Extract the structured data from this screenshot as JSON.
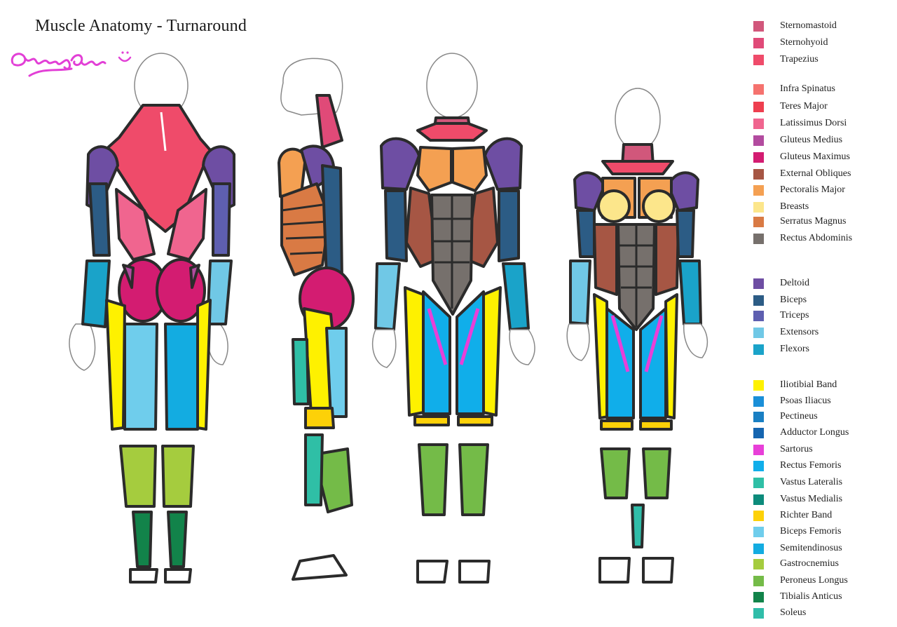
{
  "title": "Muscle Anatomy - Turnaround",
  "signature": "NooPaper",
  "legend": [
    {
      "label": "Sternomastoid",
      "color": "#d1577b"
    },
    {
      "label": "Sternohyoid",
      "color": "#e04a78"
    },
    {
      "label": "Trapezius",
      "color": "#ef4b6a"
    },
    {
      "label": "Infra Spinatus",
      "color": "#f5726e"
    },
    {
      "label": "Teres Major",
      "color": "#ee3f4f"
    },
    {
      "label": "Latissimus Dorsi",
      "color": "#f0658f"
    },
    {
      "label": "Gluteus Medius",
      "color": "#b24b9f"
    },
    {
      "label": "Gluteus Maximus",
      "color": "#d31c71"
    },
    {
      "label": "External Obliques",
      "color": "#a65644"
    },
    {
      "label": "Pectoralis Major",
      "color": "#f4a052"
    },
    {
      "label": "Breasts",
      "color": "#fce68b"
    },
    {
      "label": "Serratus Magnus",
      "color": "#d97a44"
    },
    {
      "label": "Rectus Abdominis",
      "color": "#76706c"
    },
    {
      "label": "Deltoid",
      "color": "#6e4ea3"
    },
    {
      "label": "Biceps",
      "color": "#2c5c85"
    },
    {
      "label": "Triceps",
      "color": "#5e5fb0"
    },
    {
      "label": "Extensors",
      "color": "#70c8e6"
    },
    {
      "label": "Flexors",
      "color": "#1aa3c9"
    },
    {
      "label": "Iliotibial Band",
      "color": "#fef100"
    },
    {
      "label": "Psoas Iliacus",
      "color": "#1a8fd8"
    },
    {
      "label": "Pectineus",
      "color": "#197fc3"
    },
    {
      "label": "Adductor Longus",
      "color": "#1565b0"
    },
    {
      "label": "Sartorus",
      "color": "#e83fd8"
    },
    {
      "label": "Rectus Femoris",
      "color": "#10aeea"
    },
    {
      "label": "Vastus Lateralis",
      "color": "#2fbfa6"
    },
    {
      "label": "Vastus Medialis",
      "color": "#0c8b7b"
    },
    {
      "label": "Richter Band",
      "color": "#fdd108"
    },
    {
      "label": "Biceps Femoris",
      "color": "#6fcdec"
    },
    {
      "label": "Semitendinosus",
      "color": "#13ace1"
    },
    {
      "label": "Gastrocnemius",
      "color": "#a5cc3e"
    },
    {
      "label": "Peroneus Longus",
      "color": "#74bb48"
    },
    {
      "label": "Tibialis Anticus",
      "color": "#12834a"
    },
    {
      "label": "Soleus",
      "color": "#30bda9"
    }
  ]
}
